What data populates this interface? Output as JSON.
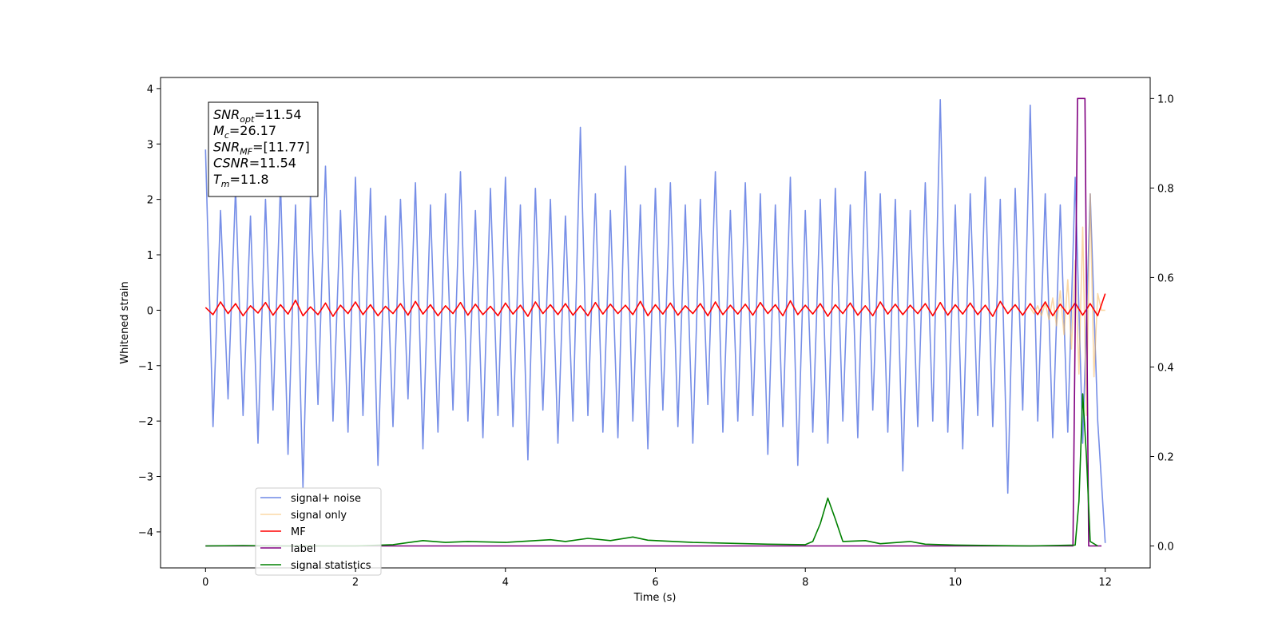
{
  "chart_data": {
    "type": "line",
    "xlabel": "Time (s)",
    "ylabel": "Whitened strain",
    "xlim": [
      -0.6,
      12.6
    ],
    "ylim": [
      -4.65,
      4.2
    ],
    "y2lim": [
      -0.049,
      1.047
    ],
    "xticks": [
      0,
      2,
      4,
      6,
      8,
      10,
      12
    ],
    "yticks": [
      {
        "value": -4,
        "label": "−4"
      },
      {
        "value": -3,
        "label": "−3"
      },
      {
        "value": -2,
        "label": "−2"
      },
      {
        "value": -1,
        "label": "−1"
      },
      0,
      1,
      2,
      3,
      4
    ],
    "y2ticks": [
      {
        "value": 0,
        "label": "0.0"
      },
      0.2,
      0.4,
      0.6,
      0.8,
      {
        "value": 1,
        "label": "1.0"
      }
    ],
    "legend": "lower left",
    "annotations": [
      {
        "main": "SNR",
        "sub": "opt",
        "text": "=11.54"
      },
      {
        "main": "M",
        "sub": "c",
        "text": "=26.17"
      },
      {
        "main": "SNR",
        "sub": "MF",
        "text": "=[11.77]"
      },
      {
        "main": "CSNR",
        "text": "=11.54"
      },
      {
        "main": "T",
        "sub": "m",
        "text": "=11.8"
      }
    ],
    "x": [
      0,
      0.1,
      0.2,
      0.3,
      0.4,
      0.5,
      0.6,
      0.7,
      0.8,
      0.9,
      1,
      1.1,
      1.2,
      1.3,
      1.4,
      1.5,
      1.6,
      1.7,
      1.8,
      1.9,
      2,
      2.1,
      2.2,
      2.3,
      2.4,
      2.5,
      2.6,
      2.7,
      2.8,
      2.9,
      3,
      3.1,
      3.2,
      3.3,
      3.4,
      3.5,
      3.6,
      3.7,
      3.8,
      3.9,
      4,
      4.1,
      4.2,
      4.3,
      4.4,
      4.5,
      4.6,
      4.7,
      4.8,
      4.9,
      5,
      5.1,
      5.2,
      5.3,
      5.4,
      5.5,
      5.6,
      5.7,
      5.8,
      5.9,
      6,
      6.1,
      6.2,
      6.3,
      6.4,
      6.5,
      6.6,
      6.7,
      6.8,
      6.9,
      7,
      7.1,
      7.2,
      7.3,
      7.4,
      7.5,
      7.6,
      7.7,
      7.8,
      7.9,
      8,
      8.1,
      8.2,
      8.3,
      8.4,
      8.5,
      8.6,
      8.7,
      8.8,
      8.9,
      9,
      9.1,
      9.2,
      9.3,
      9.4,
      9.5,
      9.6,
      9.7,
      9.8,
      9.9,
      10,
      10.1,
      10.2,
      10.3,
      10.4,
      10.5,
      10.6,
      10.7,
      10.8,
      10.9,
      11,
      11.1,
      11.2,
      11.3,
      11.4,
      11.5,
      11.6,
      11.7,
      11.8,
      11.9,
      12
    ],
    "series": [
      {
        "name": "signal+ noise",
        "color": "#6f88e6",
        "values": [
          2.9,
          -2.1,
          1.8,
          -1.6,
          2.2,
          -1.9,
          1.7,
          -2.4,
          2.0,
          -1.8,
          2.3,
          -2.6,
          1.9,
          -3.2,
          2.1,
          -1.7,
          2.6,
          -2.0,
          1.8,
          -2.2,
          2.4,
          -1.9,
          2.2,
          -2.8,
          1.7,
          -2.1,
          2.0,
          -1.6,
          2.3,
          -2.5,
          1.9,
          -2.2,
          2.1,
          -1.8,
          2.5,
          -2.0,
          1.8,
          -2.3,
          2.2,
          -1.9,
          2.4,
          -2.1,
          1.9,
          -2.7,
          2.2,
          -1.8,
          2.0,
          -2.4,
          1.7,
          -2.0,
          3.3,
          -1.9,
          2.1,
          -2.2,
          1.8,
          -2.3,
          2.6,
          -2.0,
          1.9,
          -2.5,
          2.2,
          -1.8,
          2.3,
          -2.1,
          1.9,
          -2.4,
          2.0,
          -1.7,
          2.5,
          -2.2,
          1.8,
          -2.0,
          2.3,
          -1.9,
          2.1,
          -2.6,
          1.9,
          -2.1,
          2.4,
          -2.8,
          1.8,
          -2.2,
          2.0,
          -2.4,
          2.2,
          -2.0,
          1.9,
          -2.3,
          2.5,
          -1.8,
          2.1,
          -2.2,
          2.0,
          -2.9,
          1.8,
          -2.1,
          2.3,
          -2.0,
          3.8,
          -2.2,
          1.9,
          -2.5,
          2.1,
          -1.9,
          2.4,
          -2.1,
          2.0,
          -3.3,
          2.2,
          -1.8,
          3.7,
          -2.0,
          2.1,
          -2.3,
          1.9,
          -2.2,
          2.4,
          -2.4,
          2.1,
          -2.0,
          -4.2
        ]
      },
      {
        "name": "signal only",
        "color": "#f5b85c",
        "x": [
          11,
          11.05,
          11.1,
          11.15,
          11.2,
          11.25,
          11.3,
          11.35,
          11.4,
          11.45,
          11.5,
          11.55,
          11.6,
          11.65,
          11.7,
          11.75,
          11.8,
          11.85,
          11.9,
          11.95,
          12
        ],
        "values": [
          0.05,
          -0.06,
          0.08,
          -0.1,
          0.13,
          -0.17,
          0.22,
          -0.28,
          0.35,
          -0.44,
          0.55,
          -0.7,
          0.9,
          -1.15,
          1.5,
          -1.9,
          2.1,
          -1.2,
          0.3,
          0,
          0
        ]
      },
      {
        "name": "MF",
        "color": "#ff0000",
        "values": [
          0.05,
          -0.08,
          0.15,
          -0.06,
          0.12,
          -0.1,
          0.08,
          -0.05,
          0.14,
          -0.09,
          0.1,
          -0.07,
          0.18,
          -0.1,
          0.06,
          -0.08,
          0.13,
          -0.11,
          0.09,
          -0.06,
          0.15,
          -0.08,
          0.1,
          -0.1,
          0.07,
          -0.06,
          0.12,
          -0.09,
          0.16,
          -0.07,
          0.1,
          -0.1,
          0.08,
          -0.06,
          0.14,
          -0.09,
          0.11,
          -0.08,
          0.07,
          -0.1,
          0.13,
          -0.07,
          0.09,
          -0.11,
          0.15,
          -0.06,
          0.1,
          -0.08,
          0.12,
          -0.09,
          0.08,
          -0.1,
          0.14,
          -0.07,
          0.11,
          -0.06,
          0.09,
          -0.08,
          0.16,
          -0.1,
          0.1,
          -0.07,
          0.13,
          -0.09,
          0.08,
          -0.06,
          0.12,
          -0.1,
          0.15,
          -0.08,
          0.09,
          -0.07,
          0.11,
          -0.09,
          0.14,
          -0.06,
          0.1,
          -0.1,
          0.17,
          -0.08,
          0.09,
          -0.07,
          0.12,
          -0.11,
          0.1,
          -0.06,
          0.13,
          -0.09,
          0.08,
          -0.1,
          0.15,
          -0.07,
          0.11,
          -0.08,
          0.09,
          -0.06,
          0.12,
          -0.1,
          0.14,
          -0.09,
          0.1,
          -0.07,
          0.13,
          -0.08,
          0.09,
          -0.11,
          0.16,
          -0.06,
          0.1,
          -0.09,
          0.12,
          -0.08,
          0.15,
          -0.1,
          0.11,
          -0.07,
          0.13,
          -0.09,
          0.12,
          -0.1,
          0.3
        ]
      },
      {
        "name": "label",
        "color": "#800080",
        "axis": "y2",
        "x": [
          0,
          11.57,
          11.63,
          11.73,
          11.78,
          11.95
        ],
        "values": [
          0,
          0,
          1,
          1,
          0,
          0
        ]
      },
      {
        "name": "signal statistics",
        "color": "#008000",
        "axis": "y2",
        "x": [
          0,
          0.5,
          1,
          2,
          2.5,
          2.9,
          3.2,
          3.5,
          4,
          4.6,
          4.8,
          5.1,
          5.4,
          5.7,
          5.9,
          6.5,
          7,
          7.5,
          8,
          8.1,
          8.2,
          8.3,
          8.4,
          8.5,
          8.8,
          9,
          9.4,
          9.6,
          10,
          11,
          11.6,
          11.65,
          11.7,
          11.75,
          11.8,
          11.9
        ],
        "values": [
          0,
          0.001,
          0,
          0,
          0.003,
          0.012,
          0.008,
          0.01,
          0.008,
          0.014,
          0.01,
          0.017,
          0.012,
          0.02,
          0.013,
          0.008,
          0.006,
          0.004,
          0.003,
          0.01,
          0.05,
          0.107,
          0.06,
          0.01,
          0.012,
          0.005,
          0.01,
          0.004,
          0.002,
          0,
          0.002,
          0.1,
          0.34,
          0.2,
          0.01,
          0
        ]
      }
    ]
  }
}
